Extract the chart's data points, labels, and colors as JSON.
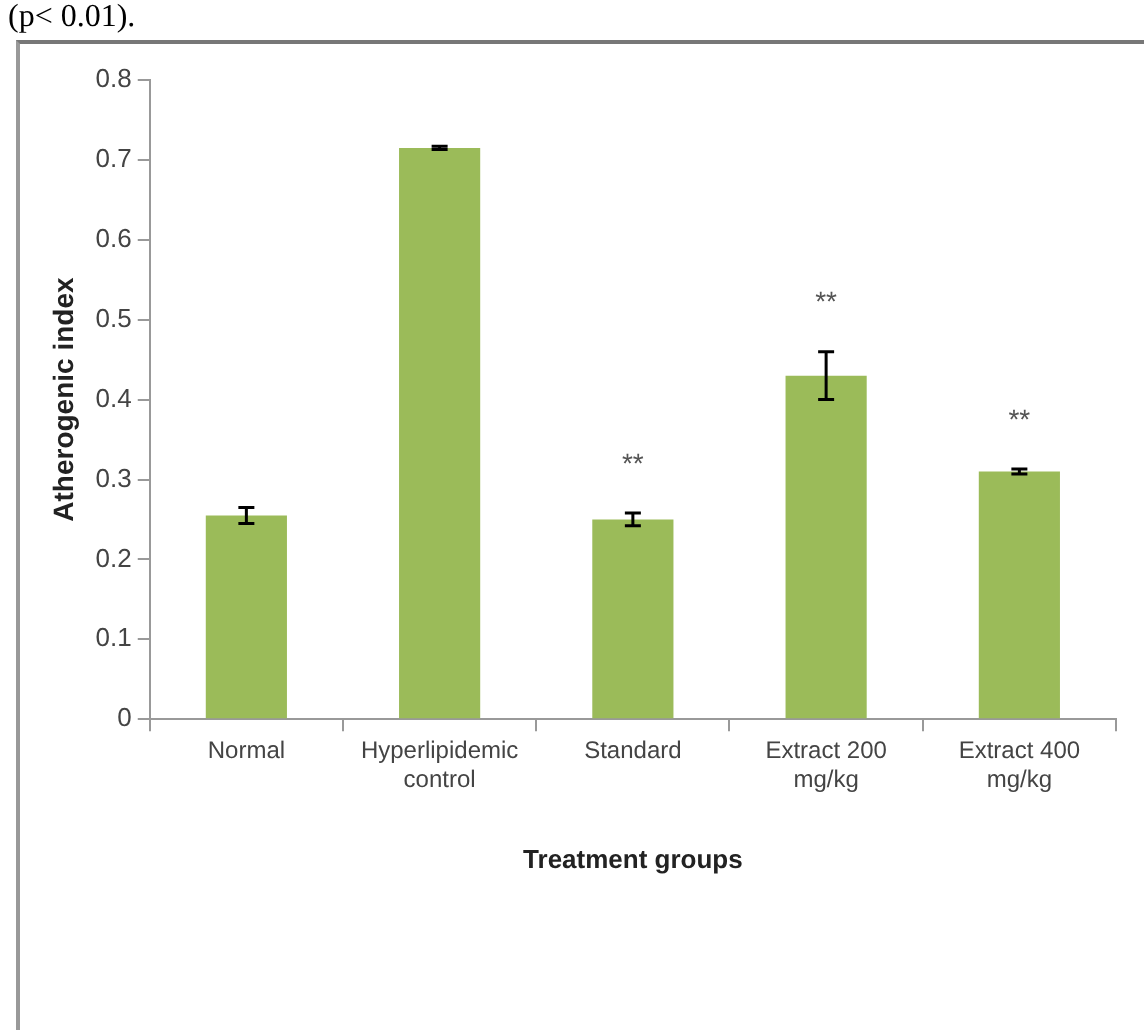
{
  "chart_data": {
    "type": "bar",
    "categories": [
      "Normal",
      "Hyperlipidemic control",
      "Standard",
      "Extract 200 mg/kg",
      "Extract 400 mg/kg"
    ],
    "values": [
      0.255,
      0.715,
      0.25,
      0.43,
      0.31
    ],
    "errors": [
      0.01,
      0.002,
      0.008,
      0.03,
      0.003
    ],
    "color": "#9bbb59",
    "xlabel": "Treatment groups",
    "ylabel": "Atherogenic index",
    "ylim": [
      0,
      0.8
    ],
    "yticks": [
      0,
      0.1,
      0.2,
      0.3,
      0.4,
      0.5,
      0.6,
      0.7,
      0.8
    ],
    "grid": false,
    "legend": false,
    "annotations": [
      "(p< 0.01).",
      {
        "text": "**",
        "x": "Standard",
        "y": 0.25
      },
      {
        "text": "**",
        "x": "Extract 200 mg/kg",
        "y": 0.43
      },
      {
        "text": "**",
        "x": "Extract 400 mg/kg",
        "y": 0.31
      }
    ]
  }
}
